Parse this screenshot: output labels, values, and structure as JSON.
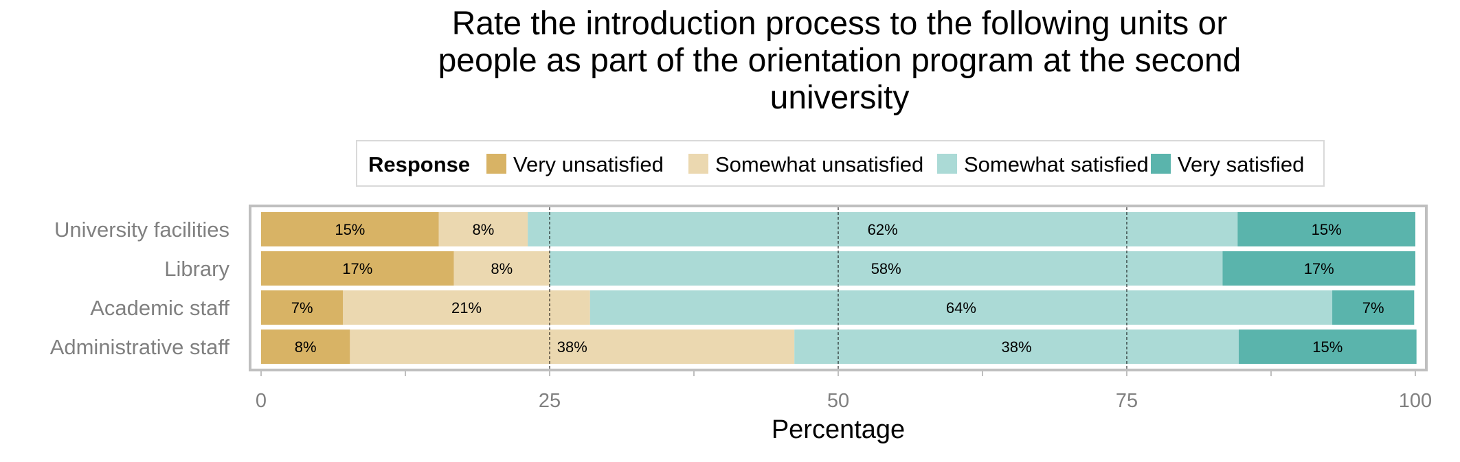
{
  "chart_data": {
    "type": "bar",
    "orientation": "horizontal",
    "stacked": true,
    "title": "Rate the introduction process to the following units or people as part of the orientation program at the second university",
    "title_lines": [
      "Rate the introduction process to the following units or",
      "people as part of the orientation program at the second",
      "university"
    ],
    "xlabel": "Percentage",
    "ylabel": "",
    "xlim": [
      0,
      100
    ],
    "x_ticks": [
      0,
      25,
      50,
      75,
      100
    ],
    "grid": true,
    "legend": {
      "title": "Response",
      "placement": "top"
    },
    "categories": [
      "University facilities",
      "Library",
      "Academic staff",
      "Administrative staff"
    ],
    "series": [
      {
        "name": "Very unsatisfied",
        "color": "#D8B365",
        "values": [
          15.4,
          16.7,
          7.1,
          7.7
        ],
        "labels": [
          "15%",
          "17%",
          "7%",
          "8%"
        ]
      },
      {
        "name": "Somewhat unsatisfied",
        "color": "#EBD8B0",
        "values": [
          7.7,
          8.3,
          21.4,
          38.5
        ],
        "labels": [
          "8%",
          "8%",
          "21%",
          "38%"
        ]
      },
      {
        "name": "Somewhat satisfied",
        "color": "#ABDAD6",
        "values": [
          61.5,
          58.3,
          64.3,
          38.5
        ],
        "labels": [
          "62%",
          "58%",
          "64%",
          "38%"
        ]
      },
      {
        "name": "Very satisfied",
        "color": "#5AB4AC",
        "values": [
          15.4,
          16.7,
          7.1,
          15.4
        ],
        "labels": [
          "15%",
          "17%",
          "7%",
          "15%"
        ]
      }
    ]
  }
}
